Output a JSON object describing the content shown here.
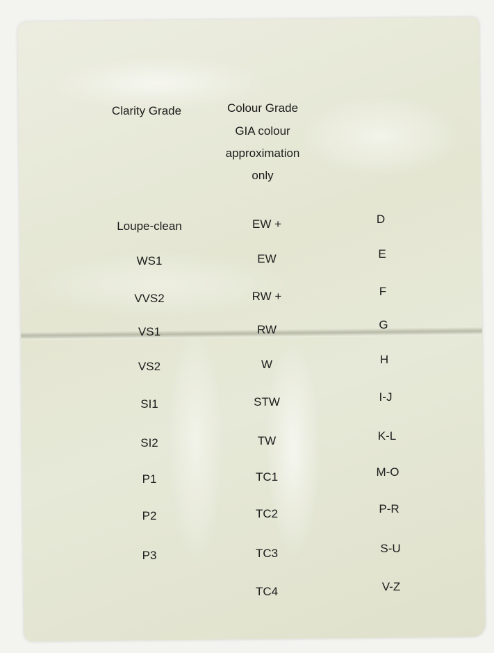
{
  "headers": {
    "clarity": "Clarity Grade",
    "colour_lines": [
      "Colour Grade",
      "GIA colour",
      "approximation",
      "only"
    ]
  },
  "rows": [
    {
      "clarity": "Loupe-clean",
      "colour": "EW +",
      "gia": "D"
    },
    {
      "clarity": "WS1",
      "colour": "EW",
      "gia": "E"
    },
    {
      "clarity": "VVS2",
      "colour": "RW +",
      "gia": "F"
    },
    {
      "clarity": "VS1",
      "colour": "RW",
      "gia": "G"
    },
    {
      "clarity": "VS2",
      "colour": "W",
      "gia": "H"
    },
    {
      "clarity": "SI1",
      "colour": "STW",
      "gia": "I-J"
    },
    {
      "clarity": "SI2",
      "colour": "TW",
      "gia": "K-L"
    },
    {
      "clarity": "P1",
      "colour": "TC1",
      "gia": "M-O"
    },
    {
      "clarity": "P2",
      "colour": "TC2",
      "gia": "P-R"
    },
    {
      "clarity": "P3",
      "colour": "TC3",
      "gia": "S-U"
    },
    {
      "clarity": "",
      "colour": "TC4",
      "gia": "V-Z"
    }
  ]
}
